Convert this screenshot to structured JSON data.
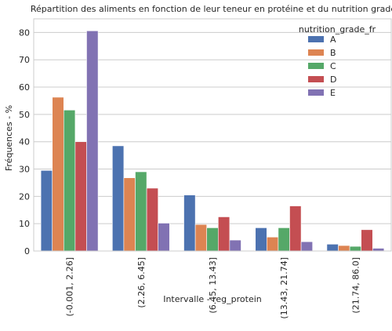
{
  "chart_data": {
    "type": "bar",
    "title": "Répartition des aliments en fonction de leur teneur en protéine et du nutrition grade",
    "xlabel": "Intervalle - reg_protein",
    "ylabel": "Fréquences - %",
    "ylim": [
      0,
      85
    ],
    "yticks": [
      0,
      10,
      20,
      30,
      40,
      50,
      60,
      70,
      80
    ],
    "grid": "horizontal",
    "legend_placement": "top-right",
    "legend_title": "nutrition_grade_fr",
    "categories": [
      "(-0.001, 2.26]",
      "(2.26, 6.45]",
      "(6.45, 13.43]",
      "(13.43, 21.74]",
      "(21.74, 86.0]"
    ],
    "series": [
      {
        "name": "A",
        "color": "#4c72b0",
        "values": [
          29.5,
          38.5,
          20.5,
          8.5,
          2.5
        ]
      },
      {
        "name": "B",
        "color": "#dd8452",
        "values": [
          56.3,
          26.8,
          9.7,
          5.1,
          2.0
        ]
      },
      {
        "name": "C",
        "color": "#55a868",
        "values": [
          51.6,
          29.0,
          8.5,
          8.5,
          1.7
        ]
      },
      {
        "name": "D",
        "color": "#c44e52",
        "values": [
          40.0,
          23.0,
          12.5,
          16.5,
          7.8
        ]
      },
      {
        "name": "E",
        "color": "#8172b3",
        "values": [
          80.6,
          10.2,
          4.0,
          3.4,
          1.0
        ]
      }
    ]
  }
}
